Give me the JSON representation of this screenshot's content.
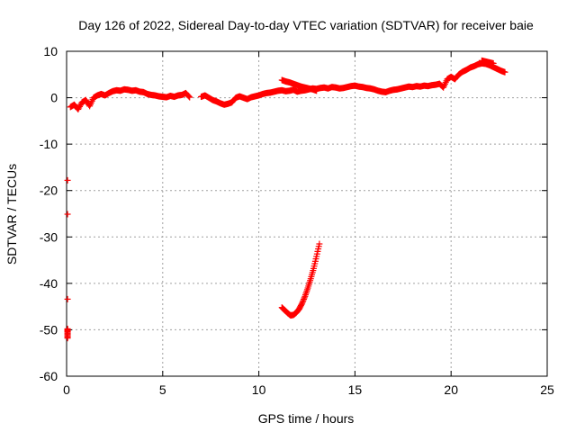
{
  "chart_data": {
    "type": "scatter",
    "title": "Day 126 of 2022, Sidereal Day-to-day VTEC variation (SDTVAR) for receiver baie",
    "xlabel": "GPS time / hours",
    "ylabel": "SDTVAR / TECUs",
    "xlim": [
      0,
      25
    ],
    "ylim": [
      -60,
      10
    ],
    "xticks": [
      0,
      5,
      10,
      15,
      20,
      25
    ],
    "yticks": [
      10,
      0,
      -10,
      -20,
      -30,
      -40,
      -50,
      -60
    ],
    "grid": true,
    "marker": "plus",
    "color": "#ff0000",
    "series": [
      {
        "name": "main-trace",
        "points": [
          [
            0.2,
            -2
          ],
          [
            0.4,
            -1.5
          ],
          [
            0.6,
            -2.5
          ],
          [
            0.8,
            -1
          ],
          [
            1.0,
            -0.5
          ],
          [
            1.2,
            -1.8
          ],
          [
            1.4,
            0
          ],
          [
            1.6,
            0.5
          ],
          [
            1.8,
            0.8
          ],
          [
            2.0,
            0.5
          ],
          [
            2.2,
            1
          ],
          [
            2.4,
            1.4
          ],
          [
            2.6,
            1.6
          ],
          [
            2.8,
            1.5
          ],
          [
            3.0,
            1.8
          ],
          [
            3.2,
            1.7
          ],
          [
            3.4,
            1.5
          ],
          [
            3.6,
            1.6
          ],
          [
            3.8,
            1.3
          ],
          [
            4.0,
            1.2
          ],
          [
            4.2,
            0.8
          ],
          [
            4.4,
            0.6
          ],
          [
            4.6,
            0.5
          ],
          [
            4.8,
            0.3
          ],
          [
            5.0,
            0.2
          ],
          [
            5.2,
            0.1
          ],
          [
            5.4,
            0.4
          ],
          [
            5.6,
            0.2
          ],
          [
            5.8,
            0.5
          ],
          [
            6.0,
            0.6
          ],
          [
            6.2,
            1
          ],
          [
            6.4,
            0.1
          ],
          [
            7.0,
            0.2
          ],
          [
            7.2,
            0.5
          ],
          [
            7.4,
            0
          ],
          [
            7.6,
            -0.5
          ],
          [
            7.8,
            -0.8
          ],
          [
            8.0,
            -1.2
          ],
          [
            8.2,
            -1.5
          ],
          [
            8.4,
            -1.3
          ],
          [
            8.6,
            -1
          ],
          [
            8.8,
            0
          ],
          [
            9.0,
            0.3
          ],
          [
            9.2,
            0
          ],
          [
            9.4,
            -0.3
          ],
          [
            9.6,
            0.1
          ],
          [
            9.8,
            0.3
          ],
          [
            10.0,
            0.5
          ],
          [
            10.2,
            0.8
          ],
          [
            10.4,
            1
          ],
          [
            10.6,
            1.1
          ],
          [
            10.8,
            1.3
          ],
          [
            11.0,
            1.5
          ],
          [
            11.2,
            1.6
          ],
          [
            11.4,
            1.4
          ],
          [
            11.6,
            1.5
          ],
          [
            11.8,
            1.7
          ],
          [
            12.0,
            1.3
          ],
          [
            12.2,
            1.5
          ],
          [
            12.4,
            1.6
          ],
          [
            12.6,
            1.8
          ],
          [
            12.8,
            2
          ],
          [
            13.0,
            1.9
          ],
          [
            13.2,
            2.1
          ],
          [
            13.4,
            2.2
          ],
          [
            13.6,
            2
          ],
          [
            13.8,
            2.3
          ],
          [
            14.0,
            2.2
          ],
          [
            14.2,
            2
          ],
          [
            14.4,
            2.1
          ],
          [
            14.6,
            2.3
          ],
          [
            14.8,
            2.5
          ],
          [
            15.0,
            2.6
          ],
          [
            15.2,
            2.4
          ],
          [
            15.4,
            2.3
          ],
          [
            15.6,
            2.1
          ],
          [
            15.8,
            2
          ],
          [
            16.0,
            1.8
          ],
          [
            16.2,
            1.5
          ],
          [
            16.4,
            1.3
          ],
          [
            16.6,
            1.2
          ],
          [
            16.8,
            1.5
          ],
          [
            17.0,
            1.7
          ],
          [
            17.2,
            1.8
          ],
          [
            17.4,
            2
          ],
          [
            17.6,
            2.2
          ],
          [
            17.8,
            2.4
          ],
          [
            18.0,
            2.3
          ],
          [
            18.2,
            2.5
          ],
          [
            18.4,
            2.4
          ],
          [
            18.6,
            2.6
          ],
          [
            18.8,
            2.5
          ],
          [
            19.0,
            2.7
          ],
          [
            19.2,
            2.8
          ],
          [
            19.4,
            3
          ],
          [
            19.6,
            2.2
          ],
          [
            19.8,
            4
          ],
          [
            20.0,
            4.5
          ],
          [
            20.2,
            4
          ],
          [
            20.4,
            5
          ],
          [
            20.6,
            5.6
          ],
          [
            20.8,
            6
          ],
          [
            21.0,
            6.5
          ],
          [
            21.2,
            6.8
          ],
          [
            21.4,
            7.2
          ],
          [
            21.6,
            7.4
          ],
          [
            21.8,
            7.3
          ],
          [
            22.0,
            7
          ],
          [
            22.2,
            6.6
          ],
          [
            22.4,
            6.2
          ],
          [
            22.6,
            5.8
          ],
          [
            22.8,
            5.5
          ],
          [
            11.2,
            3.8
          ],
          [
            11.4,
            3.5
          ],
          [
            11.6,
            3.3
          ],
          [
            11.8,
            3
          ],
          [
            12.0,
            2.7
          ],
          [
            12.2,
            2.4
          ],
          [
            12.4,
            2.2
          ],
          [
            12.6,
            2
          ],
          [
            12.8,
            1.8
          ],
          [
            13.0,
            1.5
          ],
          [
            21.6,
            8
          ],
          [
            21.8,
            7.8
          ],
          [
            22.0,
            7.6
          ],
          [
            22.2,
            7.4
          ]
        ]
      },
      {
        "name": "negative-arc",
        "points": [
          [
            11.2,
            -45.2
          ],
          [
            11.35,
            -45.8
          ],
          [
            11.5,
            -46.4
          ],
          [
            11.65,
            -46.9
          ],
          [
            11.8,
            -46.8
          ],
          [
            11.95,
            -46.3
          ],
          [
            12.1,
            -45.5
          ],
          [
            12.25,
            -44.3
          ],
          [
            12.4,
            -42.8
          ],
          [
            12.55,
            -41
          ],
          [
            12.7,
            -39
          ],
          [
            12.85,
            -36.8
          ],
          [
            13.0,
            -34.2
          ],
          [
            13.15,
            -31.5
          ]
        ]
      },
      {
        "name": "left-edge",
        "points": [
          [
            0.05,
            -17.8
          ],
          [
            0.05,
            -25.1
          ],
          [
            0.05,
            -43.4
          ],
          [
            0.05,
            -49.8
          ],
          [
            0.05,
            -50.5
          ],
          [
            0.05,
            -51.8
          ]
        ]
      }
    ]
  }
}
